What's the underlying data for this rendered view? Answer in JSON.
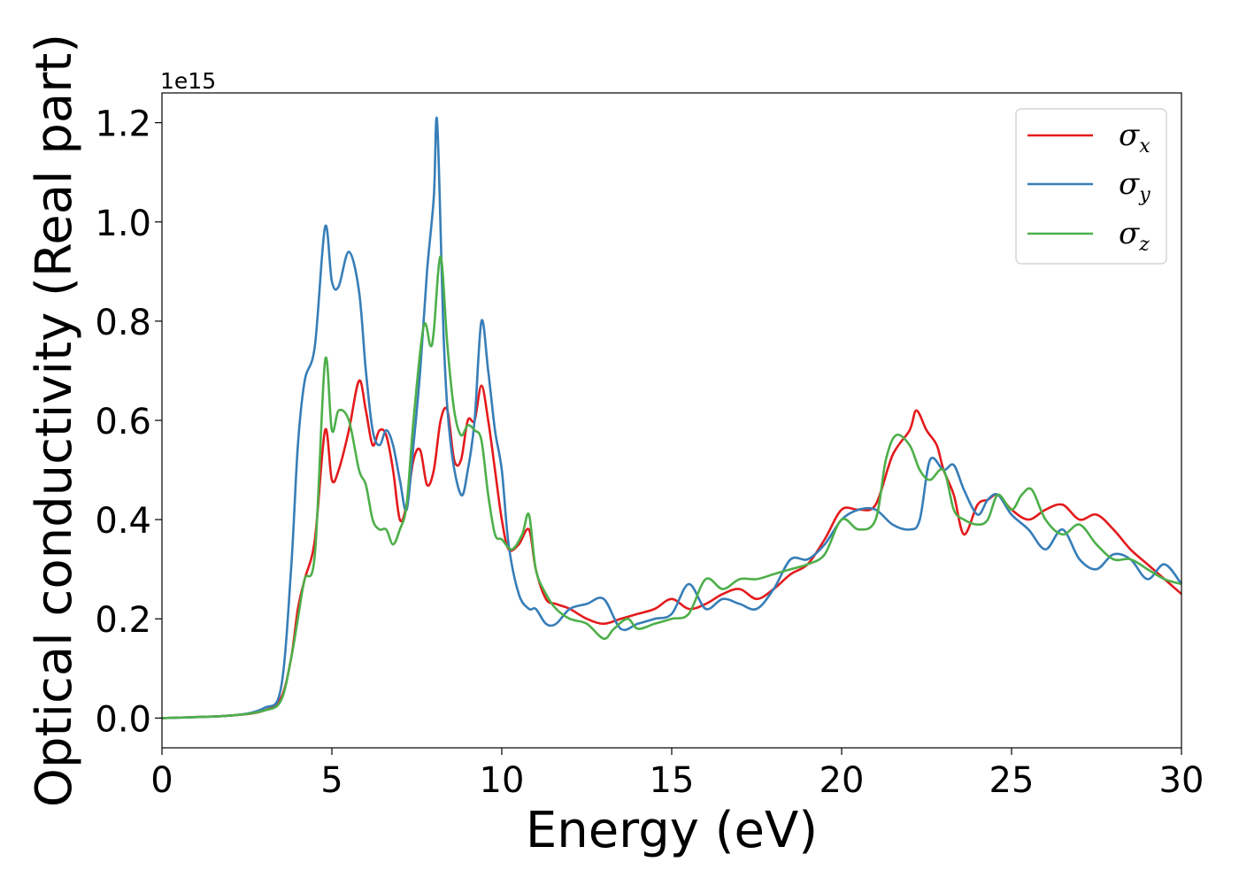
{
  "chart_data": {
    "type": "line",
    "title": "",
    "xlabel": "Energy (eV)",
    "ylabel": "Optical conductivity (Real part)",
    "y_offset_label": "1e15",
    "xlim": [
      0,
      30
    ],
    "ylim": [
      -0.06,
      1.26
    ],
    "x_ticks": [
      0,
      5,
      10,
      15,
      20,
      25,
      30
    ],
    "x_tick_labels": [
      "0",
      "5",
      "10",
      "15",
      "20",
      "25",
      "30"
    ],
    "y_ticks": [
      0.0,
      0.2,
      0.4,
      0.6,
      0.8,
      1.0,
      1.2
    ],
    "y_tick_labels": [
      "0.0",
      "0.2",
      "0.4",
      "0.6",
      "0.8",
      "1.0",
      "1.2"
    ],
    "grid": false,
    "legend_position": "top-right",
    "series": [
      {
        "name": "σx",
        "symbol": "σ",
        "subscript": "x",
        "color": "#e41a1c",
        "x": [
          0,
          2,
          3,
          3.5,
          3.8,
          4.0,
          4.2,
          4.5,
          4.8,
          5.0,
          5.2,
          5.5,
          5.8,
          6.0,
          6.2,
          6.4,
          6.6,
          6.8,
          7.0,
          7.2,
          7.4,
          7.6,
          7.8,
          8.0,
          8.2,
          8.4,
          8.6,
          8.8,
          9.0,
          9.2,
          9.4,
          9.6,
          9.8,
          10.0,
          10.2,
          10.5,
          10.8,
          11.0,
          11.3,
          11.6,
          12.0,
          12.5,
          13.0,
          13.5,
          14.0,
          14.5,
          15.0,
          15.5,
          16.0,
          16.5,
          17.0,
          17.5,
          18.0,
          18.5,
          19.0,
          19.5,
          20.0,
          20.5,
          21.0,
          21.5,
          22.0,
          22.2,
          22.5,
          22.8,
          23.0,
          23.3,
          23.6,
          24.0,
          24.3,
          24.6,
          25.0,
          25.5,
          26.0,
          26.5,
          27.0,
          27.5,
          28.0,
          28.5,
          29.0,
          29.5,
          30.0
        ],
        "y": [
          0,
          0.005,
          0.015,
          0.04,
          0.12,
          0.22,
          0.28,
          0.36,
          0.58,
          0.48,
          0.5,
          0.58,
          0.68,
          0.62,
          0.55,
          0.58,
          0.57,
          0.5,
          0.4,
          0.43,
          0.52,
          0.54,
          0.47,
          0.5,
          0.6,
          0.62,
          0.52,
          0.52,
          0.6,
          0.6,
          0.67,
          0.6,
          0.5,
          0.4,
          0.34,
          0.35,
          0.38,
          0.3,
          0.24,
          0.23,
          0.22,
          0.2,
          0.19,
          0.2,
          0.21,
          0.22,
          0.24,
          0.22,
          0.23,
          0.25,
          0.26,
          0.24,
          0.26,
          0.29,
          0.31,
          0.36,
          0.42,
          0.42,
          0.43,
          0.53,
          0.58,
          0.62,
          0.58,
          0.55,
          0.5,
          0.45,
          0.37,
          0.43,
          0.44,
          0.45,
          0.42,
          0.4,
          0.42,
          0.43,
          0.4,
          0.41,
          0.38,
          0.34,
          0.31,
          0.28,
          0.25
        ]
      },
      {
        "name": "σy",
        "symbol": "σ",
        "subscript": "y",
        "color": "#377eb8",
        "x": [
          0,
          2,
          3,
          3.5,
          3.8,
          4.0,
          4.2,
          4.5,
          4.8,
          5.0,
          5.2,
          5.5,
          5.8,
          6.0,
          6.2,
          6.4,
          6.6,
          6.8,
          7.0,
          7.2,
          7.4,
          7.6,
          7.8,
          8.0,
          8.1,
          8.3,
          8.5,
          8.8,
          9.0,
          9.2,
          9.4,
          9.6,
          9.8,
          10.0,
          10.2,
          10.5,
          10.8,
          11.0,
          11.3,
          11.6,
          12.0,
          12.5,
          13.0,
          13.5,
          14.0,
          14.5,
          15.0,
          15.5,
          16.0,
          16.5,
          17.0,
          17.5,
          18.0,
          18.5,
          19.0,
          19.5,
          20.0,
          20.5,
          21.0,
          21.5,
          22.0,
          22.3,
          22.6,
          23.0,
          23.3,
          23.6,
          24.0,
          24.3,
          24.6,
          25.0,
          25.5,
          26.0,
          26.5,
          27.0,
          27.5,
          28.0,
          28.5,
          29.0,
          29.5,
          30.0
        ],
        "y": [
          0,
          0.005,
          0.02,
          0.06,
          0.3,
          0.55,
          0.68,
          0.75,
          0.99,
          0.88,
          0.87,
          0.94,
          0.86,
          0.7,
          0.58,
          0.55,
          0.58,
          0.55,
          0.48,
          0.42,
          0.55,
          0.7,
          0.9,
          1.05,
          1.2,
          0.75,
          0.55,
          0.45,
          0.5,
          0.6,
          0.8,
          0.7,
          0.58,
          0.5,
          0.35,
          0.25,
          0.22,
          0.22,
          0.19,
          0.19,
          0.22,
          0.23,
          0.24,
          0.18,
          0.19,
          0.2,
          0.21,
          0.27,
          0.22,
          0.24,
          0.23,
          0.22,
          0.26,
          0.32,
          0.32,
          0.35,
          0.4,
          0.42,
          0.42,
          0.39,
          0.38,
          0.4,
          0.52,
          0.5,
          0.51,
          0.46,
          0.41,
          0.44,
          0.45,
          0.41,
          0.38,
          0.34,
          0.38,
          0.32,
          0.3,
          0.33,
          0.32,
          0.28,
          0.31,
          0.27
        ]
      },
      {
        "name": "σz",
        "symbol": "σ",
        "subscript": "z",
        "color": "#4daf4a",
        "x": [
          0,
          2,
          3,
          3.5,
          3.8,
          4.0,
          4.2,
          4.5,
          4.8,
          5.0,
          5.2,
          5.5,
          5.8,
          6.0,
          6.2,
          6.4,
          6.6,
          6.8,
          7.0,
          7.2,
          7.4,
          7.7,
          7.9,
          8.0,
          8.2,
          8.4,
          8.6,
          8.8,
          9.0,
          9.2,
          9.4,
          9.6,
          9.8,
          10.0,
          10.3,
          10.6,
          10.8,
          11.0,
          11.3,
          11.6,
          12.0,
          12.5,
          13.0,
          13.3,
          13.7,
          14.0,
          14.5,
          15.0,
          15.5,
          16.0,
          16.5,
          17.0,
          17.5,
          18.0,
          18.5,
          19.0,
          19.5,
          20.0,
          20.5,
          21.0,
          21.3,
          21.6,
          22.0,
          22.3,
          22.6,
          23.0,
          23.3,
          23.6,
          24.0,
          24.3,
          24.6,
          25.0,
          25.3,
          25.6,
          26.0,
          26.5,
          27.0,
          27.5,
          28.0,
          28.5,
          29.0,
          29.5,
          30.0
        ],
        "y": [
          0,
          0.005,
          0.015,
          0.035,
          0.12,
          0.2,
          0.28,
          0.33,
          0.72,
          0.58,
          0.62,
          0.6,
          0.5,
          0.47,
          0.4,
          0.38,
          0.38,
          0.35,
          0.38,
          0.43,
          0.6,
          0.79,
          0.75,
          0.78,
          0.93,
          0.75,
          0.62,
          0.57,
          0.59,
          0.58,
          0.56,
          0.45,
          0.37,
          0.36,
          0.34,
          0.37,
          0.41,
          0.3,
          0.25,
          0.22,
          0.2,
          0.19,
          0.16,
          0.18,
          0.2,
          0.18,
          0.19,
          0.2,
          0.21,
          0.28,
          0.26,
          0.28,
          0.28,
          0.29,
          0.3,
          0.31,
          0.33,
          0.4,
          0.38,
          0.4,
          0.52,
          0.57,
          0.55,
          0.5,
          0.48,
          0.5,
          0.42,
          0.4,
          0.39,
          0.4,
          0.45,
          0.42,
          0.45,
          0.46,
          0.4,
          0.37,
          0.39,
          0.35,
          0.32,
          0.32,
          0.3,
          0.28,
          0.27
        ]
      }
    ]
  }
}
